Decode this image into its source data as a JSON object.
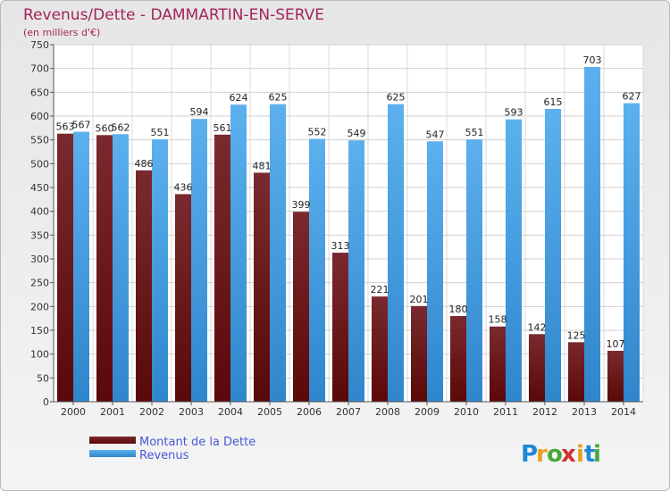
{
  "chart_data": {
    "type": "bar",
    "title": "Revenus/Dette - DAMMARTIN-EN-SERVE",
    "subtitle": "(en milliers d'€)",
    "categories": [
      "2000",
      "2001",
      "2002",
      "2003",
      "2004",
      "2005",
      "2006",
      "2007",
      "2008",
      "2009",
      "2010",
      "2011",
      "2012",
      "2013",
      "2014"
    ],
    "series": [
      {
        "name": "Montant de la Dette",
        "color": "#6e1418",
        "values": [
          563,
          560,
          486,
          436,
          561,
          481,
          399,
          313,
          221,
          201,
          180,
          158,
          142,
          125,
          107
        ]
      },
      {
        "name": "Revenus",
        "color": "#3e9ee6",
        "values": [
          567,
          562,
          551,
          594,
          624,
          625,
          552,
          549,
          625,
          547,
          551,
          593,
          615,
          703,
          627
        ]
      }
    ],
    "yticks": [
      0,
      50,
      100,
      150,
      200,
      250,
      300,
      350,
      400,
      450,
      500,
      550,
      600,
      650,
      700,
      750
    ],
    "ylim": [
      0,
      750
    ],
    "grid": true,
    "legend_position": "bottom-left"
  },
  "logo": {
    "letters": [
      "P",
      "r",
      "o",
      "x",
      "i",
      "t",
      "i"
    ],
    "colors": [
      "#1e88d8",
      "#e8a020",
      "#4aa83a",
      "#d03030",
      "#e8a020",
      "#1e88d8",
      "#4aa83a"
    ]
  }
}
